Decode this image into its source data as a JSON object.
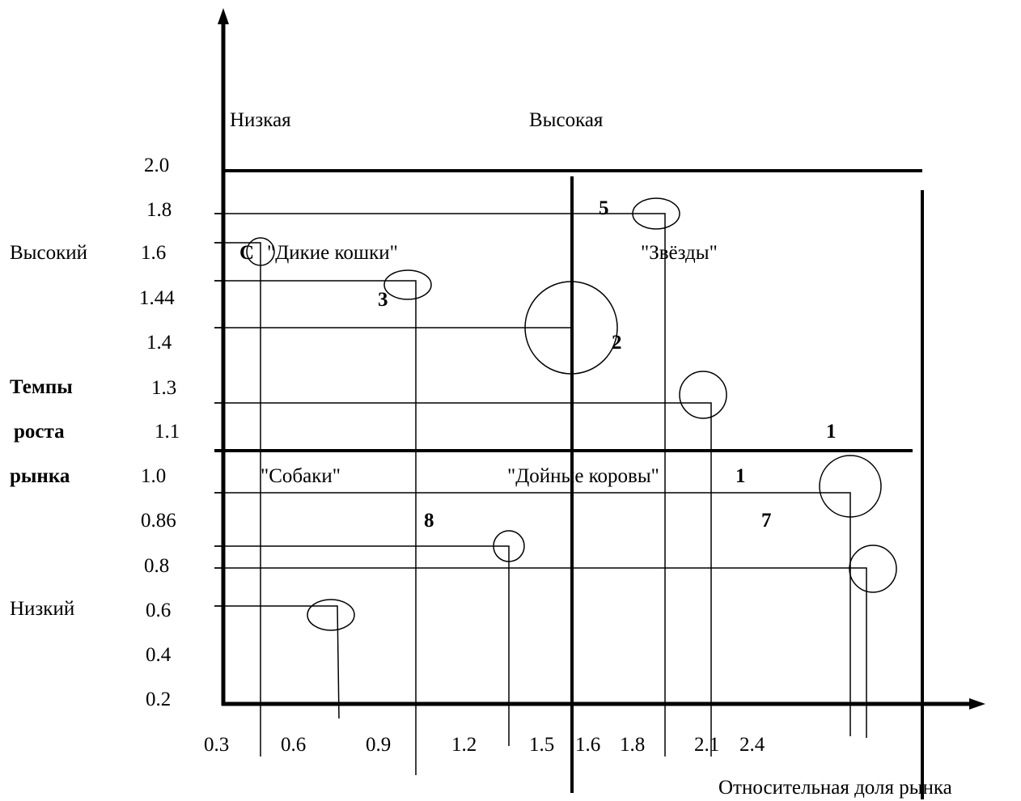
{
  "chart_data": {
    "type": "bubble",
    "title": "",
    "xlabel": "Относительная доля рынка",
    "ylabel": [
      "Темпы",
      "роста",
      "рынка"
    ],
    "x_ticks": [
      "0.3",
      "0.6",
      "0.9",
      "1.2",
      "1.5",
      "1.6",
      "1.8",
      "2.1",
      "2.4"
    ],
    "y_ticks": [
      "2.0",
      "1.8",
      "1.6",
      "1.44",
      "1.4",
      "1.3",
      "1.1",
      "1.0",
      "0.86",
      "0.8",
      "0.6",
      "0.4",
      "0.2"
    ],
    "x_level_labels": {
      "low": "Низкая",
      "high": "Высокая"
    },
    "y_level_labels": {
      "high": "Высокий",
      "low": "Низкий"
    },
    "quadrants": [
      "\"Дикие кошки\"",
      "\"Звёзды\"",
      "\"Собаки\"",
      "\"Дойные коровы\""
    ],
    "bubble_labels": [
      "5",
      "C",
      "3",
      "2",
      "1",
      "1",
      "8",
      "7"
    ],
    "bubbles": [
      {
        "y_tick": "1.8",
        "size": "small"
      },
      {
        "y_tick": "1.6",
        "size": "small"
      },
      {
        "y_tick": "1.44",
        "size": "small"
      },
      {
        "y_tick": "1.4",
        "size": "large"
      },
      {
        "y_tick": "1.3",
        "size": "medium"
      },
      {
        "y_tick": "1.0",
        "size": "large"
      },
      {
        "y_tick": "0.86",
        "size": "small"
      },
      {
        "y_tick": "0.8",
        "size": "medium"
      },
      {
        "y_tick": "0.6",
        "size": "small"
      }
    ]
  }
}
